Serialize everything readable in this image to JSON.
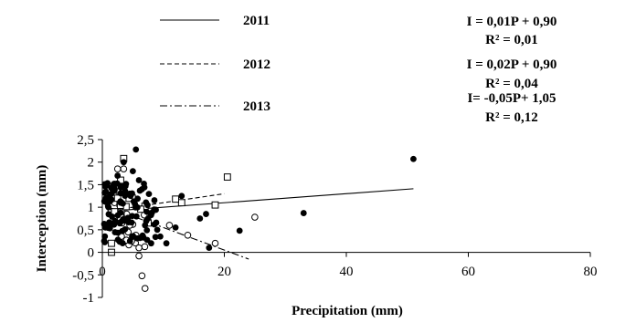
{
  "chart_data": {
    "type": "scatter",
    "title": "",
    "xlabel": "Precipitation (mm)",
    "ylabel": "Interception (mm)",
    "xlim": [
      0,
      80
    ],
    "ylim": [
      -1,
      2.5
    ],
    "xticks": [
      0,
      20,
      40,
      60,
      80
    ],
    "yticks": [
      2.5,
      2,
      1.5,
      1,
      0.5,
      0,
      -0.5,
      -1
    ],
    "xtick_labels": [
      "0",
      "20",
      "40",
      "60",
      "80"
    ],
    "ytick_labels": [
      "2,5",
      "2",
      "1,5",
      "1",
      "0,5",
      "0",
      "-0,5",
      "-1"
    ],
    "grid": false,
    "legend_position": "top",
    "series": [
      {
        "name": "2011",
        "marker": "filled-circle",
        "line_style": "solid",
        "trendline": {
          "slope": 0.01,
          "intercept": 0.9,
          "x_range": [
            1,
            51
          ]
        },
        "equation": "I = 0,01P + 0,90",
        "r2": "R² = 0,01",
        "points": [
          [
            51,
            2.07
          ],
          [
            33,
            0.87
          ],
          [
            22.5,
            0.48
          ],
          [
            17.5,
            0.1
          ],
          [
            17,
            0.85
          ],
          [
            16,
            0.75
          ],
          [
            13,
            1.25
          ],
          [
            12,
            0.55
          ],
          [
            10.5,
            0.2
          ],
          [
            9.5,
            0.35
          ],
          [
            9,
            0.5
          ],
          [
            8.5,
            0.95
          ],
          [
            8,
            0.2
          ],
          [
            7.5,
            0.75
          ],
          [
            7,
            0.6
          ],
          [
            6.5,
            1.4
          ],
          [
            6,
            1.6
          ],
          [
            5.5,
            2.28
          ],
          [
            5,
            1.8
          ],
          [
            4.5,
            1.3
          ],
          [
            3.5,
            2.0
          ],
          [
            3,
            1.1
          ],
          [
            2.5,
            1.7
          ],
          [
            2,
            1.5
          ],
          [
            1.5,
            1.3
          ],
          [
            1,
            1.0
          ],
          [
            0.5,
            0.55
          ],
          [
            0.3,
            0.25
          ]
        ],
        "cluster": {
          "n": 90,
          "x_range": [
            0.3,
            9
          ],
          "y_range": [
            0.2,
            1.55
          ]
        }
      },
      {
        "name": "2012",
        "marker": "open-square",
        "line_style": "dashed",
        "trendline": {
          "slope": 0.02,
          "intercept": 0.9,
          "x_range": [
            1,
            20
          ]
        },
        "equation": "I = 0,02P + 0,90",
        "r2": "R² = 0,04",
        "points": [
          [
            20.5,
            1.67
          ],
          [
            18.5,
            1.05
          ],
          [
            13,
            1.1
          ],
          [
            12,
            1.18
          ],
          [
            7.5,
            0.65
          ],
          [
            3.5,
            2.08
          ],
          [
            3,
            1.6
          ],
          [
            2.5,
            1.2
          ],
          [
            2,
            0.9
          ],
          [
            1.5,
            0.2
          ],
          [
            1.5,
            0.0
          ]
        ],
        "cluster": {
          "n": 14,
          "x_range": [
            1.2,
            7
          ],
          "y_range": [
            0.75,
            1.5
          ]
        }
      },
      {
        "name": "2013",
        "marker": "open-circle",
        "line_style": "dash-dot",
        "trendline": {
          "slope": -0.05,
          "intercept": 1.05,
          "x_range": [
            1,
            24
          ]
        },
        "equation": "I= -0,05P+ 1,05",
        "r2": "R² = 0,12",
        "points": [
          [
            25,
            0.78
          ],
          [
            18.5,
            0.2
          ],
          [
            14,
            0.38
          ],
          [
            11,
            0.6
          ],
          [
            7,
            -0.8
          ],
          [
            6.5,
            -0.52
          ],
          [
            6,
            0.1
          ],
          [
            6,
            -0.08
          ],
          [
            5.5,
            0.38
          ],
          [
            5,
            0.62
          ],
          [
            4.5,
            0.6
          ],
          [
            4,
            0.85
          ],
          [
            3.5,
            1.85
          ],
          [
            3,
            1.5
          ],
          [
            2.5,
            1.85
          ],
          [
            2,
            1.1
          ]
        ],
        "cluster": {
          "n": 10,
          "x_range": [
            3,
            7.5
          ],
          "y_range": [
            0.0,
            0.9
          ]
        }
      }
    ]
  }
}
